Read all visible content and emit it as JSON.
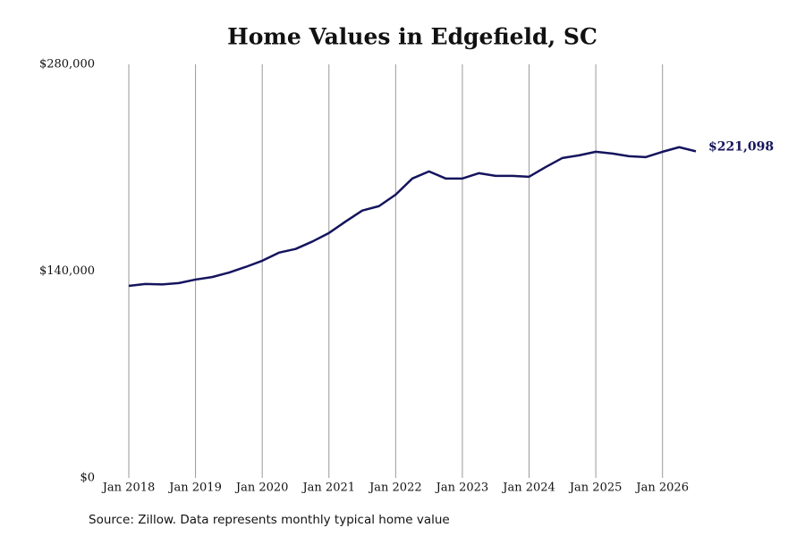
{
  "chart_data": {
    "type": "line",
    "title": "Home Values in Edgefield, SC",
    "source": "Source: Zillow. Data represents monthly typical home value",
    "x": [
      "2018-01",
      "2018-04",
      "2018-07",
      "2018-10",
      "2019-01",
      "2019-04",
      "2019-07",
      "2019-10",
      "2020-01",
      "2020-04",
      "2020-07",
      "2020-10",
      "2021-01",
      "2021-04",
      "2021-07",
      "2021-10",
      "2022-01",
      "2022-04",
      "2022-07",
      "2022-10",
      "2023-01",
      "2023-04",
      "2023-07",
      "2023-10",
      "2024-01",
      "2024-04",
      "2024-07",
      "2024-10",
      "2025-01",
      "2025-04",
      "2025-07",
      "2025-10",
      "2026-01",
      "2026-04",
      "2026-07"
    ],
    "series": [
      {
        "color": "#14145e",
        "values": [
          130000,
          131300,
          131000,
          131900,
          134300,
          136000,
          139000,
          142800,
          147000,
          152500,
          155000,
          160000,
          165800,
          173600,
          181000,
          184000,
          191800,
          202700,
          207500,
          202700,
          202700,
          206300,
          204500,
          204500,
          203900,
          210500,
          216600,
          218400,
          220800,
          219600,
          217800,
          217200,
          220800,
          223900,
          221098
        ]
      }
    ],
    "last_value_label": "$221,098",
    "xlim": [
      "2018-01",
      "2026-07"
    ],
    "xticks": [
      {
        "value": "2018-01",
        "label": "Jan 2018"
      },
      {
        "value": "2019-01",
        "label": "Jan 2019"
      },
      {
        "value": "2020-01",
        "label": "Jan 2020"
      },
      {
        "value": "2021-01",
        "label": "Jan 2021"
      },
      {
        "value": "2022-01",
        "label": "Jan 2022"
      },
      {
        "value": "2023-01",
        "label": "Jan 2023"
      },
      {
        "value": "2024-01",
        "label": "Jan 2024"
      },
      {
        "value": "2025-01",
        "label": "Jan 2025"
      },
      {
        "value": "2026-01",
        "label": "Jan 2026"
      }
    ],
    "ylim": [
      0,
      280000
    ],
    "yticks": [
      {
        "value": 0,
        "label": "$0"
      },
      {
        "value": 140000,
        "label": "$140,000"
      },
      {
        "value": 280000,
        "label": "$280,000"
      }
    ],
    "grid": "x"
  }
}
